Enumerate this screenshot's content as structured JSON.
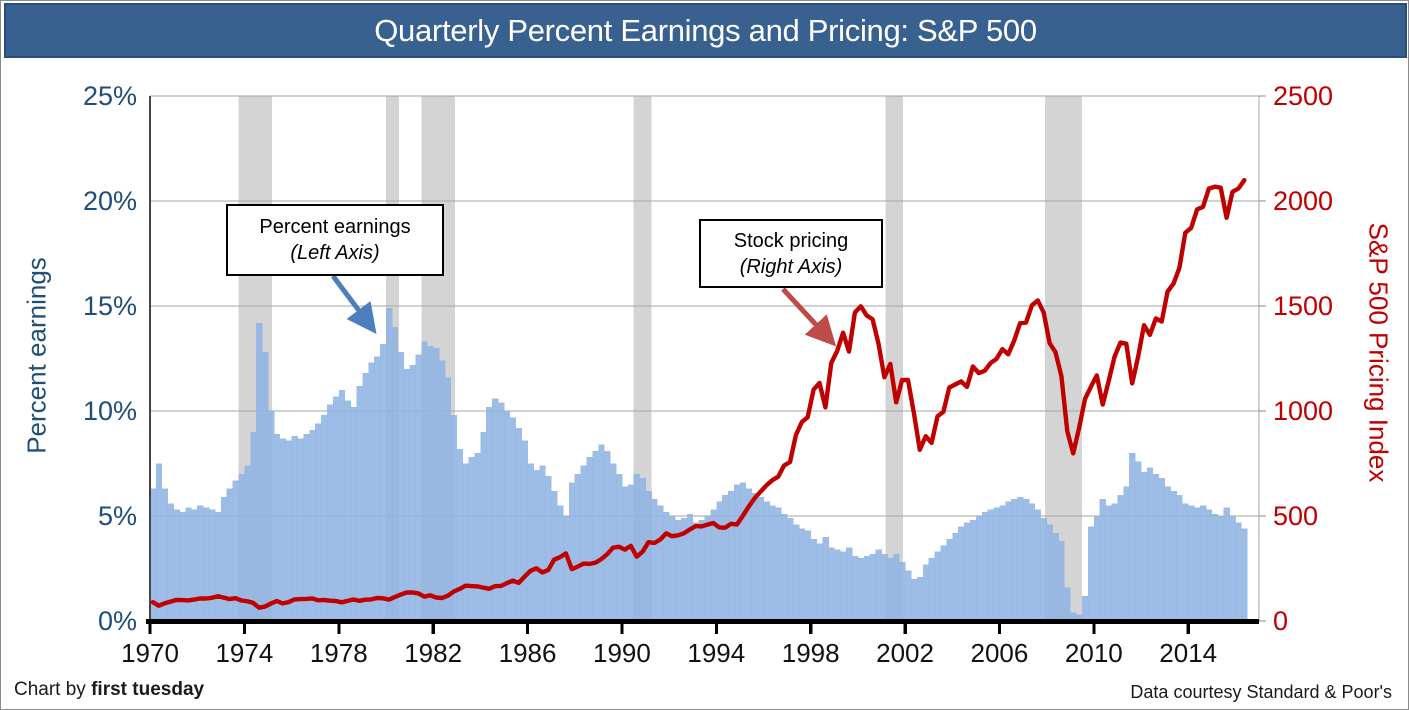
{
  "title": "Quarterly Percent Earnings and Pricing: S&P 500",
  "left_axis": {
    "title": "Percent earnings",
    "tick_labels": [
      "0%",
      "5%",
      "10%",
      "15%",
      "20%",
      "25%"
    ],
    "tick_values": [
      0,
      5,
      10,
      15,
      20,
      25
    ],
    "color": "#1F4E79"
  },
  "right_axis": {
    "title": "S&P 500 Pricing Index",
    "tick_labels": [
      "0",
      "500",
      "1000",
      "1500",
      "2000",
      "2500"
    ],
    "tick_values": [
      0,
      500,
      1000,
      1500,
      2000,
      2500
    ],
    "color": "#C00000"
  },
  "x_axis": {
    "tick_years": [
      1970,
      1974,
      1978,
      1982,
      1986,
      1990,
      1994,
      1998,
      2002,
      2006,
      2010,
      2014
    ],
    "color": "#000000"
  },
  "annotations": [
    {
      "line1": "Percent earnings",
      "line2": "(Left Axis)"
    },
    {
      "line1": "Stock pricing",
      "line2": "(Right Axis)"
    }
  ],
  "footer": {
    "left_prefix": "Chart by ",
    "left_brand": "first tuesday",
    "right": "Data courtesy Standard & Poor's"
  },
  "colors": {
    "title_bar": "#38618F",
    "bar_fill": "#8FB4E2",
    "price_line": "#C00000",
    "recession_band": "#D4D4D4",
    "gridline": "#A6A6A6",
    "axis_black": "#000000",
    "arrow_blue": "#4C7FBC",
    "arrow_red": "#BE4B48"
  },
  "chart_data": {
    "type": "area+line",
    "x_start": 1970.0,
    "x_end": 2017.0,
    "x_step_years": 0.25,
    "left_ylim": [
      0,
      25
    ],
    "right_ylim": [
      0,
      2500
    ],
    "grid": true,
    "recession_bands": [
      [
        1973.75,
        1975.17
      ],
      [
        1980.0,
        1980.55
      ],
      [
        1981.5,
        1982.92
      ],
      [
        1990.5,
        1991.25
      ],
      [
        2001.17,
        2001.92
      ],
      [
        2007.92,
        2009.5
      ]
    ],
    "series": [
      {
        "name": "Percent earnings (Left Axis)",
        "type": "area",
        "axis": "left",
        "unit": "%",
        "values": [
          6.3,
          7.5,
          6.3,
          5.6,
          5.3,
          5.2,
          5.4,
          5.3,
          5.5,
          5.4,
          5.3,
          5.2,
          5.9,
          6.3,
          6.7,
          7.0,
          7.4,
          9.0,
          14.2,
          12.8,
          10.0,
          8.9,
          8.7,
          8.6,
          8.8,
          8.7,
          8.9,
          9.1,
          9.4,
          9.8,
          10.3,
          10.7,
          11.0,
          10.5,
          10.2,
          11.2,
          11.8,
          12.3,
          12.6,
          13.2,
          14.9,
          14.0,
          12.8,
          12.0,
          12.2,
          12.7,
          13.3,
          13.1,
          13.0,
          12.4,
          11.6,
          9.8,
          8.2,
          7.5,
          7.8,
          8.0,
          9.0,
          10.2,
          10.6,
          10.4,
          10.0,
          9.7,
          9.2,
          8.6,
          7.5,
          7.2,
          7.4,
          6.9,
          6.2,
          5.5,
          5.0,
          6.6,
          7.0,
          7.4,
          7.8,
          8.1,
          8.4,
          8.1,
          7.5,
          7.0,
          6.4,
          6.5,
          7.0,
          6.8,
          6.2,
          5.8,
          5.5,
          5.2,
          5.0,
          4.8,
          4.9,
          5.1,
          4.7,
          4.8,
          5.0,
          5.3,
          5.7,
          6.0,
          6.2,
          6.5,
          6.6,
          6.3,
          6.1,
          5.9,
          5.7,
          5.5,
          5.4,
          5.1,
          4.9,
          4.6,
          4.4,
          4.3,
          3.9,
          3.7,
          4.0,
          3.5,
          3.4,
          3.3,
          3.5,
          3.1,
          3.0,
          3.1,
          3.2,
          3.4,
          3.2,
          3.0,
          3.2,
          2.8,
          2.4,
          2.0,
          2.1,
          2.7,
          3.0,
          3.3,
          3.6,
          3.9,
          4.2,
          4.5,
          4.7,
          4.8,
          5.0,
          5.2,
          5.3,
          5.4,
          5.5,
          5.7,
          5.8,
          5.9,
          5.8,
          5.6,
          5.3,
          4.9,
          4.6,
          4.2,
          3.8,
          1.6,
          0.4,
          0.3,
          1.2,
          4.5,
          5.0,
          5.8,
          5.5,
          5.6,
          6.0,
          6.4,
          8.0,
          7.6,
          7.1,
          7.3,
          7.0,
          6.8,
          6.4,
          6.2,
          6.0,
          5.6,
          5.5,
          5.4,
          5.5,
          5.3,
          5.1,
          5.0,
          5.4,
          5.0,
          4.7,
          4.4
        ]
      },
      {
        "name": "Stock pricing (Right Axis)",
        "type": "line",
        "axis": "right",
        "unit": "index",
        "values": [
          89.6,
          72.7,
          84.2,
          92.2,
          100.3,
          99.7,
          98.3,
          102.1,
          107.2,
          107.1,
          110.6,
          118.1,
          111.5,
          104.3,
          108.4,
          97.6,
          93.9,
          86.0,
          63.5,
          68.6,
          83.4,
          95.2,
          83.9,
          90.2,
          102.8,
          104.3,
          105.2,
          107.5,
          98.4,
          100.5,
          96.5,
          95.1,
          89.2,
          95.5,
          102.5,
          96.1,
          101.6,
          102.9,
          109.3,
          107.9,
          102.1,
          114.2,
          125.5,
          135.8,
          136.0,
          131.2,
          116.2,
          122.6,
          112.0,
          109.6,
          120.4,
          140.6,
          153.0,
          168.1,
          166.1,
          164.9,
          159.2,
          153.2,
          166.1,
          167.2,
          180.7,
          191.9,
          182.1,
          211.3,
          238.9,
          250.8,
          231.3,
          242.2,
          291.7,
          304.0,
          321.8,
          247.1,
          258.9,
          273.5,
          271.9,
          277.7,
          294.9,
          318.0,
          349.2,
          353.4,
          339.9,
          358.0,
          306.1,
          330.2,
          375.2,
          371.2,
          387.9,
          417.1,
          403.7,
          408.1,
          417.8,
          435.7,
          451.7,
          450.5,
          458.9,
          466.5,
          445.8,
          444.3,
          462.7,
          459.3,
          500.7,
          544.8,
          584.4,
          615.9,
          645.5,
          670.6,
          687.3,
          740.7,
          757.1,
          885.1,
          947.3,
          970.4,
          1101.8,
          1133.8,
          1017.0,
          1229.2,
          1286.4,
          1372.7,
          1282.7,
          1469.3,
          1498.6,
          1454.6,
          1436.5,
          1320.3,
          1160.3,
          1224.4,
          1040.9,
          1148.1,
          1147.4,
          989.8,
          815.3,
          879.8,
          848.2,
          974.5,
          996.0,
          1111.9,
          1126.2,
          1140.8,
          1114.6,
          1211.9,
          1180.6,
          1191.3,
          1228.8,
          1248.3,
          1294.9,
          1270.2,
          1335.9,
          1418.3,
          1420.9,
          1503.4,
          1526.8,
          1468.4,
          1322.7,
          1280.0,
          1166.4,
          903.3,
          797.9,
          919.3,
          1057.1,
          1115.1,
          1169.4,
          1030.7,
          1141.2,
          1257.6,
          1325.8,
          1320.6,
          1131.4,
          1257.6,
          1408.5,
          1362.2,
          1440.7,
          1426.2,
          1569.2,
          1606.3,
          1681.6,
          1848.4,
          1872.3,
          1960.2,
          1972.3,
          2058.9,
          2067.9,
          2063.1,
          1920.0,
          2043.9,
          2059.7,
          2099.0
        ]
      }
    ]
  }
}
